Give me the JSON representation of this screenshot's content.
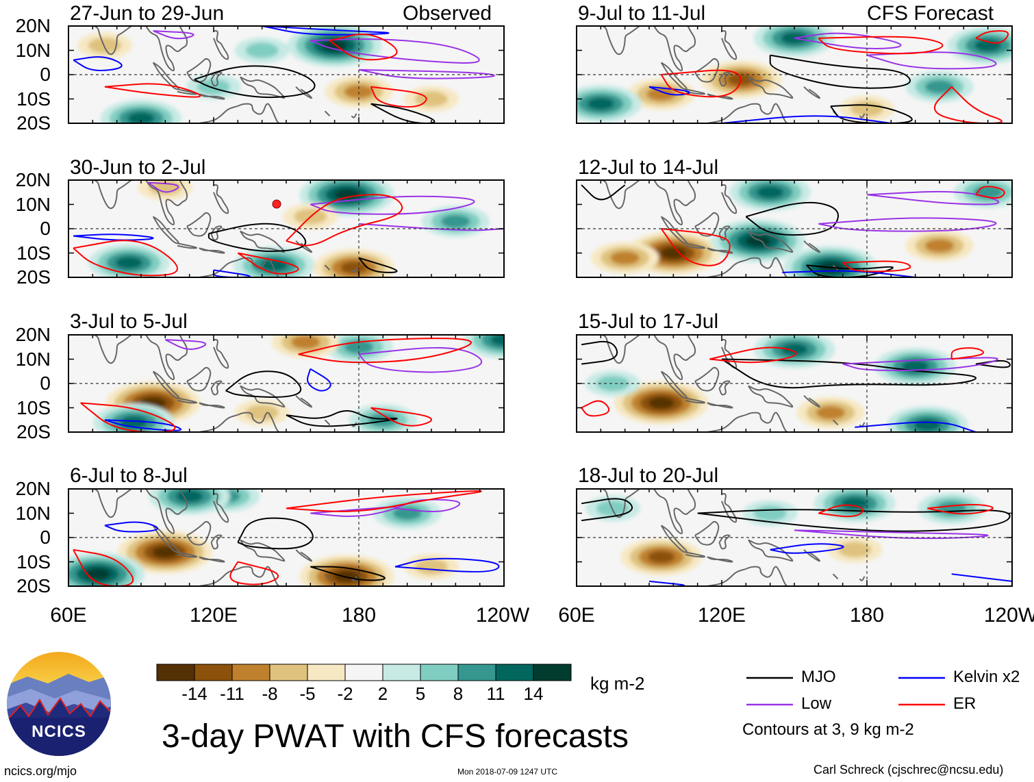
{
  "header": {
    "left_label": "Observed",
    "right_label": "CFS Forecast"
  },
  "panels": [
    {
      "id": "obs1",
      "title": "27-Jun to 29-Jun"
    },
    {
      "id": "obs2",
      "title": "30-Jun to 2-Jul"
    },
    {
      "id": "obs3",
      "title": "3-Jul to 5-Jul"
    },
    {
      "id": "obs4",
      "title": "6-Jul to 8-Jul"
    },
    {
      "id": "fc1",
      "title": "9-Jul to 11-Jul"
    },
    {
      "id": "fc2",
      "title": "12-Jul to 14-Jul"
    },
    {
      "id": "fc3",
      "title": "15-Jul to 17-Jul"
    },
    {
      "id": "fc4",
      "title": "18-Jul to 20-Jul"
    }
  ],
  "colorbar": {
    "colors": [
      "#543005",
      "#8c510a",
      "#bf812d",
      "#dfc27d",
      "#f6e8c3",
      "#f5f5f5",
      "#c7eae5",
      "#80cdc1",
      "#35978f",
      "#01665e",
      "#003c30"
    ],
    "ticks": [
      "-14",
      "-11",
      "-8",
      "-5",
      "-2",
      "2",
      "5",
      "8",
      "11",
      "14"
    ],
    "units": "kg m-2"
  },
  "legend": {
    "items": [
      {
        "label": "MJO",
        "color": "#000000"
      },
      {
        "label": "Kelvin x2",
        "color": "#0000ff"
      },
      {
        "label": "Low",
        "color": "#9932e6"
      },
      {
        "label": "ER",
        "color": "#ff0000"
      }
    ],
    "note": "Contours at 3, 9 kg m-2"
  },
  "title": "3-day PWAT with CFS forecasts",
  "logo_text": "NCICS",
  "footer": {
    "url": "ncics.org/mjo",
    "timestamp": "Mon 2018-07-09 1247 UTC",
    "credit": "Carl Schreck (cjschrec@ncsu.edu)"
  },
  "chart_data": {
    "type": "heatmap",
    "title": "3-day PWAT with CFS forecasts",
    "variable": "Precipitable water anomaly",
    "units": "kg m-2",
    "x_ticks": [
      "60E",
      "120E",
      "180",
      "120W"
    ],
    "y_ticks": [
      "20N",
      "10N",
      "0",
      "10S",
      "20S"
    ],
    "lon_range": [
      60,
      240
    ],
    "lat_range": [
      -20,
      20
    ],
    "contour_levels": [
      3,
      9
    ],
    "series": [
      {
        "name": "MJO",
        "color": "#000000"
      },
      {
        "name": "Kelvin x2",
        "color": "#0000ff"
      },
      {
        "name": "Low",
        "color": "#9932e6"
      },
      {
        "name": "ER",
        "color": "#ff0000"
      }
    ],
    "anomaly_centers": [
      {
        "panel": 0,
        "lon": 170,
        "lat": 12,
        "value": 14
      },
      {
        "panel": 0,
        "lon": 140,
        "lat": 10,
        "value": 5
      },
      {
        "panel": 0,
        "lon": 90,
        "lat": -18,
        "value": 11
      },
      {
        "panel": 0,
        "lon": 180,
        "lat": -7,
        "value": -8
      },
      {
        "panel": 0,
        "lon": 75,
        "lat": 12,
        "value": -5
      },
      {
        "panel": 0,
        "lon": 210,
        "lat": -10,
        "value": -5
      },
      {
        "panel": 0,
        "lon": 120,
        "lat": -5,
        "value": 5
      },
      {
        "panel": 1,
        "lon": 175,
        "lat": 14,
        "value": 14
      },
      {
        "panel": 1,
        "lon": 85,
        "lat": -14,
        "value": 11
      },
      {
        "panel": 1,
        "lon": 145,
        "lat": -15,
        "value": 11
      },
      {
        "panel": 1,
        "lon": 178,
        "lat": -16,
        "value": -11
      },
      {
        "panel": 1,
        "lon": 160,
        "lat": 5,
        "value": -5
      },
      {
        "panel": 1,
        "lon": 100,
        "lat": 17,
        "value": -5
      },
      {
        "panel": 1,
        "lon": 220,
        "lat": 3,
        "value": 8
      },
      {
        "panel": 2,
        "lon": 95,
        "lat": -8,
        "value": -14
      },
      {
        "panel": 2,
        "lon": 87,
        "lat": -16,
        "value": 11
      },
      {
        "panel": 2,
        "lon": 180,
        "lat": 15,
        "value": 8
      },
      {
        "panel": 2,
        "lon": 158,
        "lat": 17,
        "value": -8
      },
      {
        "panel": 2,
        "lon": 240,
        "lat": 18,
        "value": 11
      },
      {
        "panel": 2,
        "lon": 140,
        "lat": -12,
        "value": -5
      },
      {
        "panel": 2,
        "lon": 190,
        "lat": -15,
        "value": 8
      },
      {
        "panel": 3,
        "lon": 100,
        "lat": -6,
        "value": -14
      },
      {
        "panel": 3,
        "lon": 175,
        "lat": -16,
        "value": -14
      },
      {
        "panel": 3,
        "lon": 72,
        "lat": -15,
        "value": 14
      },
      {
        "panel": 3,
        "lon": 125,
        "lat": 17,
        "value": 8
      },
      {
        "panel": 3,
        "lon": 110,
        "lat": 17,
        "value": 11
      },
      {
        "panel": 3,
        "lon": 200,
        "lat": 10,
        "value": 8
      },
      {
        "panel": 3,
        "lon": 210,
        "lat": -12,
        "value": -5
      },
      {
        "panel": 4,
        "lon": 128,
        "lat": -2,
        "value": -11
      },
      {
        "panel": 4,
        "lon": 95,
        "lat": -8,
        "value": -8
      },
      {
        "panel": 4,
        "lon": 150,
        "lat": 15,
        "value": 11
      },
      {
        "panel": 4,
        "lon": 70,
        "lat": -12,
        "value": 11
      },
      {
        "panel": 4,
        "lon": 180,
        "lat": -14,
        "value": -5
      },
      {
        "panel": 4,
        "lon": 230,
        "lat": 12,
        "value": 11
      },
      {
        "panel": 4,
        "lon": 210,
        "lat": -5,
        "value": 8
      },
      {
        "panel": 5,
        "lon": 100,
        "lat": -10,
        "value": -14
      },
      {
        "panel": 5,
        "lon": 135,
        "lat": -5,
        "value": 14
      },
      {
        "panel": 5,
        "lon": 165,
        "lat": -16,
        "value": 14
      },
      {
        "panel": 5,
        "lon": 140,
        "lat": 15,
        "value": 11
      },
      {
        "panel": 5,
        "lon": 80,
        "lat": -12,
        "value": -8
      },
      {
        "panel": 5,
        "lon": 210,
        "lat": -7,
        "value": -8
      },
      {
        "panel": 5,
        "lon": 230,
        "lat": 15,
        "value": 8
      },
      {
        "panel": 6,
        "lon": 95,
        "lat": -8,
        "value": -14
      },
      {
        "panel": 6,
        "lon": 150,
        "lat": 14,
        "value": 11
      },
      {
        "panel": 6,
        "lon": 200,
        "lat": 7,
        "value": 11
      },
      {
        "panel": 6,
        "lon": 165,
        "lat": -12,
        "value": -8
      },
      {
        "panel": 6,
        "lon": 75,
        "lat": 0,
        "value": 5
      },
      {
        "panel": 6,
        "lon": 205,
        "lat": -17,
        "value": 11
      },
      {
        "panel": 7,
        "lon": 95,
        "lat": -8,
        "value": -11
      },
      {
        "panel": 7,
        "lon": 175,
        "lat": 14,
        "value": 11
      },
      {
        "panel": 7,
        "lon": 215,
        "lat": 12,
        "value": 8
      },
      {
        "panel": 7,
        "lon": 140,
        "lat": 10,
        "value": 5
      },
      {
        "panel": 7,
        "lon": 175,
        "lat": -5,
        "value": -5
      },
      {
        "panel": 7,
        "lon": 75,
        "lat": 12,
        "value": 5
      }
    ]
  }
}
